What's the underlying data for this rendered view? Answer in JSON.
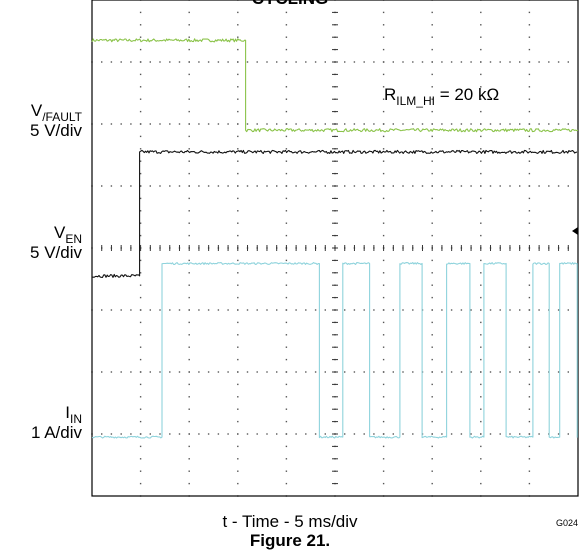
{
  "chart_data": {
    "type": "line",
    "title": "CYCLING",
    "xlabel": "t - Time - 5 ms/div",
    "figure_label": "Figure 21.",
    "code": "G024",
    "annotation": {
      "prefix": "R",
      "sub": "ILM_HI",
      "suffix": " = 20 kΩ"
    },
    "time_per_div_ms": 5,
    "xlim_ms": [
      0,
      50
    ],
    "divisions": {
      "x": 10,
      "y": 8
    },
    "grid": true,
    "trace_colors": {
      "fault": "#8bc34a",
      "en": "#111111",
      "iin": "#8fd3dc"
    },
    "channels": [
      {
        "id": "fault",
        "name_main": "V",
        "name_sub": "/FAULT",
        "scale": "5 V/div",
        "level_div": [
          7.35,
          5.9
        ],
        "step_ms": [
          15.8
        ],
        "noise": 0.05
      },
      {
        "id": "en",
        "name_main": "V",
        "name_sub": "EN",
        "scale": "5 V/div",
        "level_div": [
          3.55,
          5.55
        ],
        "step_ms": [
          4.9
        ],
        "noise": 0.05
      },
      {
        "id": "iin",
        "name_main": "I",
        "name_sub": "IN",
        "scale": "1 A/div",
        "base_div": 0.95,
        "high_div": 3.75,
        "noise": 0.03,
        "pulses_ms": [
          [
            7.1,
            23.4
          ],
          [
            25.7,
            28.5
          ],
          [
            31.6,
            33.9
          ],
          [
            36.4,
            38.8
          ],
          [
            40.2,
            42.5
          ],
          [
            45.3,
            47.0
          ],
          [
            48.0,
            49.9
          ]
        ]
      }
    ]
  }
}
